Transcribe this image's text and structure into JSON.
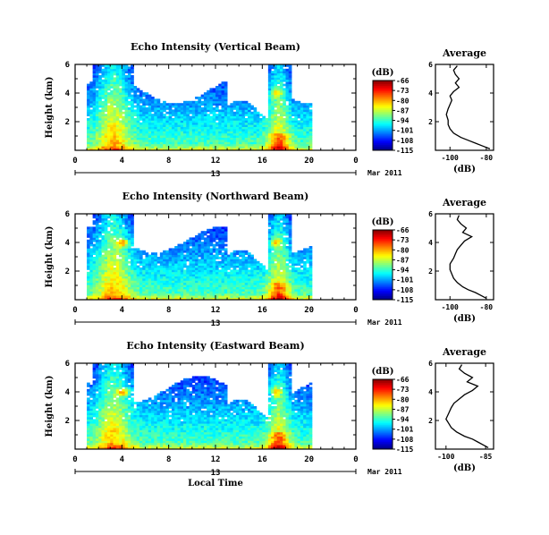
{
  "chart_data": [
    {
      "type": "heatmap",
      "title": "Echo Intensity (Vertical Beam)",
      "ylabel": "Height (km)",
      "x_ticks": [
        "0",
        "4",
        "8",
        "12",
        "16",
        "20",
        "0"
      ],
      "y_ticks": [
        "6",
        "4",
        "2"
      ],
      "xlim": [
        0,
        24
      ],
      "ylim": [
        0,
        6
      ],
      "date_day": "13",
      "date_month": "Mar 2011",
      "colorbar": {
        "unit": "(dB)",
        "ticks": [
          "-66",
          "-73",
          "-80",
          "-87",
          "-94",
          "-101",
          "-108",
          "-115"
        ],
        "range": [
          -115,
          -66
        ]
      },
      "profile": {
        "title": "Average",
        "xlabel": "(dB)",
        "x_ticks": [
          "-100",
          "-80"
        ],
        "xlim": [
          -108,
          -76
        ],
        "y_ticks": [
          "6",
          "4",
          "2"
        ],
        "height_km": [
          0.1,
          0.3,
          0.5,
          0.7,
          0.9,
          1.2,
          1.5,
          1.8,
          2.1,
          2.5,
          2.9,
          3.2,
          3.5,
          3.8,
          4.1,
          4.4,
          4.7,
          5.0,
          5.3,
          5.6,
          5.9
        ],
        "values_db": [
          -78,
          -82,
          -86,
          -90,
          -94,
          -98,
          -100,
          -101,
          -101,
          -102,
          -101,
          -100,
          -99,
          -100,
          -98,
          -95,
          -97,
          -95,
          -97,
          -98,
          -96
        ]
      }
    },
    {
      "type": "heatmap",
      "title": "Echo Intensity (Northward Beam)",
      "ylabel": "Height (km)",
      "x_ticks": [
        "0",
        "4",
        "8",
        "12",
        "16",
        "20",
        "0"
      ],
      "y_ticks": [
        "6",
        "4",
        "2"
      ],
      "xlim": [
        0,
        24
      ],
      "ylim": [
        0,
        6
      ],
      "date_day": "13",
      "date_month": "Mar 2011",
      "colorbar": {
        "unit": "(dB)",
        "ticks": [
          "-66",
          "-73",
          "-80",
          "-87",
          "-94",
          "-101",
          "-108",
          "-115"
        ],
        "range": [
          -115,
          -66
        ]
      },
      "profile": {
        "title": "Average",
        "xlabel": "(dB)",
        "x_ticks": [
          "-100",
          "-80"
        ],
        "xlim": [
          -108,
          -76
        ],
        "y_ticks": [
          "6",
          "4",
          "2"
        ],
        "height_km": [
          0.1,
          0.3,
          0.5,
          0.7,
          0.9,
          1.2,
          1.5,
          1.8,
          2.1,
          2.5,
          2.9,
          3.2,
          3.5,
          3.8,
          4.1,
          4.4,
          4.7,
          5.0,
          5.3,
          5.6,
          5.9
        ],
        "values_db": [
          -80,
          -83,
          -86,
          -90,
          -93,
          -96,
          -98,
          -99,
          -100,
          -100,
          -98,
          -97,
          -96,
          -94,
          -92,
          -88,
          -93,
          -91,
          -94,
          -96,
          -95
        ]
      }
    },
    {
      "type": "heatmap",
      "title": "Echo Intensity (Eastward Beam)",
      "ylabel": "Height (km)",
      "xlabel": "Local Time",
      "x_ticks": [
        "0",
        "4",
        "8",
        "12",
        "16",
        "20",
        "0"
      ],
      "y_ticks": [
        "6",
        "4",
        "2"
      ],
      "xlim": [
        0,
        24
      ],
      "ylim": [
        0,
        6
      ],
      "date_day": "13",
      "date_month": "Mar 2011",
      "colorbar": {
        "unit": "(dB)",
        "ticks": [
          "-66",
          "-73",
          "-80",
          "-87",
          "-94",
          "-101",
          "-108",
          "-115"
        ],
        "range": [
          -115,
          -66
        ]
      },
      "profile": {
        "title": "Average",
        "xlabel": "(dB)",
        "x_ticks": [
          "-100",
          "-85"
        ],
        "xlim": [
          -104,
          -82
        ],
        "y_ticks": [
          "6",
          "4",
          "2"
        ],
        "height_km": [
          0.1,
          0.3,
          0.5,
          0.7,
          0.9,
          1.2,
          1.5,
          1.8,
          2.1,
          2.5,
          2.9,
          3.2,
          3.5,
          3.8,
          4.1,
          4.4,
          4.7,
          5.0,
          5.3,
          5.6,
          5.9
        ],
        "values_db": [
          -84,
          -86,
          -88,
          -90,
          -93,
          -96,
          -98,
          -99,
          -100,
          -99,
          -98,
          -97,
          -95,
          -93,
          -90,
          -88,
          -92,
          -90,
          -93,
          -95,
          -94
        ]
      }
    }
  ]
}
